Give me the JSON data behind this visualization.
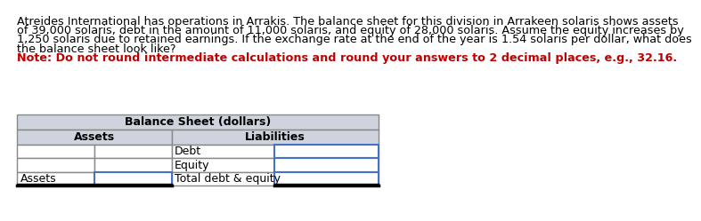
{
  "paragraph_lines": [
    "Atreides International has operations in Arrakis. The balance sheet for this division in Arrakeen solaris shows assets",
    "of 39,000 solaris, debt in the amount of 11,000 solaris, and equity of 28,000 solaris. Assume the equity increases by",
    "1,250 solaris due to retained earnings. If the exchange rate at the end of the year is 1.54 solaris per dollar, what does",
    "the balance sheet look like?"
  ],
  "note_text": "Note: Do not round intermediate calculations and round your answers to 2 decimal places, e.g., 32.16.",
  "para_color": "#000000",
  "note_color": "#c00000",
  "table_title": "Balance Sheet (dollars)",
  "col_headers": [
    "Assets",
    "Liabilities"
  ],
  "row_labels": [
    "",
    "",
    "Assets"
  ],
  "liabilities_labels": [
    "Debt",
    "Equity",
    "Total debt & equity"
  ],
  "header_bg": "#ced3de",
  "table_border_color": "#888888",
  "input_border_color": "#4472c4",
  "font_size_para": 9.2,
  "font_size_note": 9.2,
  "font_size_table": 9.0,
  "bg_color": "#ffffff"
}
